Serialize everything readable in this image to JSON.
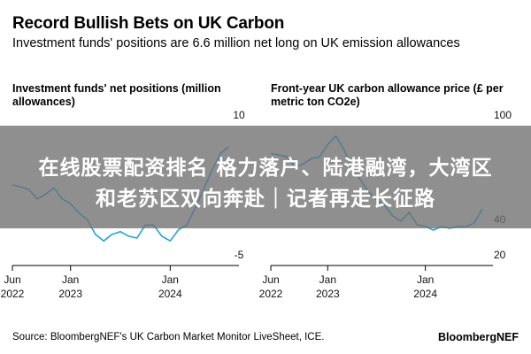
{
  "header": {
    "title": "Record Bullish Bets on UK Carbon",
    "subtitle": "Investment funds' positions are 6.6 million net long on UK emission allowances"
  },
  "overlay": {
    "line1": "在线股票配资排名 格力落户、陆港融湾，大湾区",
    "line2": "和老苏区双向奔赴｜记者再走长征路"
  },
  "footer": {
    "source": "Source: BloombergNEF's UK Carbon Market Monitor LiveSheet, ICE.",
    "brand": "BloombergNEF"
  },
  "colors": {
    "series": "#1aa5d8",
    "axis": "#000000",
    "banner": "#707070"
  },
  "chart_data": [
    {
      "type": "line",
      "title": "Investment funds' net positions (million allowances)",
      "xlim": [
        "2022-06",
        "2024-08"
      ],
      "ylim": [
        -5,
        10
      ],
      "y_ticks": [
        10,
        -5
      ],
      "x_ticks": [
        {
          "x": "2022-06",
          "line1": "Jun",
          "line2": "2022"
        },
        {
          "x": "2023-01",
          "line1": "Jan",
          "line2": "2023"
        },
        {
          "x": "2024-01",
          "line1": "Jan",
          "line2": "2024"
        }
      ],
      "grid": false,
      "series": [
        {
          "x": [
            "2022-06",
            "2022-07",
            "2022-08",
            "2022-09",
            "2022-10",
            "2022-11",
            "2022-12",
            "2023-01",
            "2023-02",
            "2023-03",
            "2023-04",
            "2023-05",
            "2023-06",
            "2023-07",
            "2023-08",
            "2023-09",
            "2023-10",
            "2023-11",
            "2023-12",
            "2024-01",
            "2024-02",
            "2024-03",
            "2024-04",
            "2024-05",
            "2024-06",
            "2024-07",
            "2024-08"
          ],
          "y": [
            2.5,
            2.3,
            2.0,
            1.0,
            1.5,
            2.2,
            1.0,
            0.5,
            -0.5,
            -1.2,
            -2.8,
            -3.5,
            -2.8,
            -2.5,
            -3.0,
            -3.2,
            -1.8,
            -1.8,
            -3.0,
            -3.5,
            -2.3,
            -1.8,
            0.0,
            2.0,
            4.0,
            5.8,
            6.6
          ]
        }
      ]
    },
    {
      "type": "line",
      "title": "Front-year UK carbon allowance price (£ per metric ton CO2e)",
      "xlim": [
        "2022-06",
        "2024-08"
      ],
      "ylim": [
        20,
        100
      ],
      "y_ticks": [
        100,
        40,
        20
      ],
      "x_ticks": [
        {
          "x": "2022-06",
          "line1": "Jun",
          "line2": "2022"
        },
        {
          "x": "2023-01",
          "line1": "Jan",
          "line2": "2023"
        },
        {
          "x": "2024-01",
          "line1": "Jan",
          "line2": "2024"
        }
      ],
      "grid": false,
      "series": [
        {
          "x": [
            "2022-06",
            "2022-07",
            "2022-08",
            "2022-09",
            "2022-10",
            "2022-11",
            "2022-12",
            "2023-01",
            "2023-02",
            "2023-03",
            "2023-04",
            "2023-05",
            "2023-06",
            "2023-07",
            "2023-08",
            "2023-09",
            "2023-10",
            "2023-11",
            "2023-12",
            "2024-01",
            "2024-02",
            "2024-03",
            "2024-04",
            "2024-05",
            "2024-06",
            "2024-07",
            "2024-08"
          ],
          "y": [
            78,
            77,
            76,
            70,
            72,
            75,
            76,
            83,
            88,
            80,
            70,
            63,
            56,
            51,
            48,
            42,
            39,
            44,
            37,
            36,
            34,
            36,
            35,
            36,
            36,
            38,
            46
          ]
        }
      ]
    }
  ]
}
